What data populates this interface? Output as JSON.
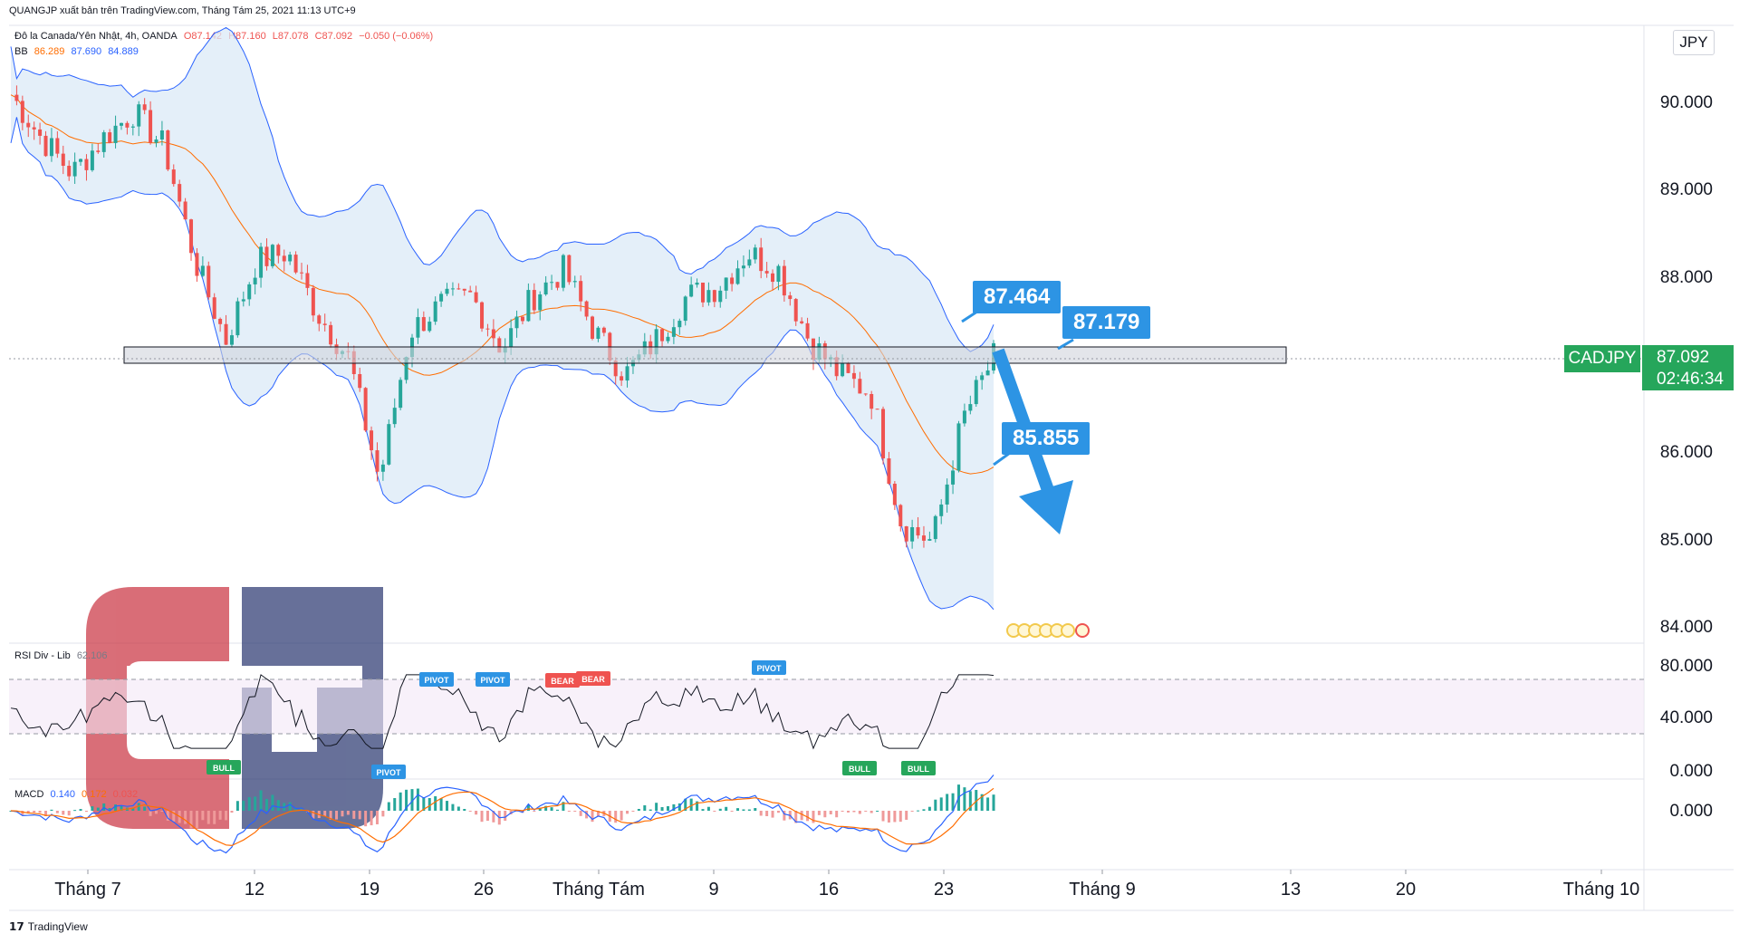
{
  "header": {
    "author_line": "QUANGJP xuất bản trên TradingView.com, Tháng Tám 25, 2021 11:13 UTC+9"
  },
  "legend": {
    "symbol_line": "Đô la Canada/Yên Nhật, 4h, OANDA",
    "open": "O87.142",
    "high": "H87.160",
    "low": "L87.078",
    "close": "C87.092",
    "change": "−0.050 (−0.06%)",
    "bb_label": "BB",
    "bb_basis": "86.289",
    "bb_upper": "87.690",
    "bb_lower": "84.889"
  },
  "currency_button": "JPY",
  "symbol_tag": "CADJPY",
  "last_price": "87.092",
  "countdown": "02:46:34",
  "price_axis": [
    "90.000",
    "89.000",
    "88.000",
    "86.000",
    "85.000",
    "84.000"
  ],
  "rsi_panel": {
    "label": "RSI Div - Lib",
    "value": "62.106",
    "axis": [
      "80.000",
      "40.000",
      "0.000"
    ],
    "signals": [
      {
        "text": "PIVOT",
        "color": "#2d94e4"
      },
      {
        "text": "PIVOT",
        "color": "#2d94e4"
      },
      {
        "text": "BEAR",
        "color": "#ef5350"
      },
      {
        "text": "BEAR",
        "color": "#ef5350"
      },
      {
        "text": "PIVOT",
        "color": "#2d94e4"
      },
      {
        "text": "BULL",
        "color": "#26a65b"
      },
      {
        "text": "PIVOT",
        "color": "#2d94e4"
      },
      {
        "text": "BULL",
        "color": "#26a65b"
      },
      {
        "text": "BULL",
        "color": "#26a65b"
      }
    ]
  },
  "macd_panel": {
    "label": "MACD",
    "v1": "0.140",
    "v2": "0.172",
    "v3": "0.032",
    "axis": [
      "0.000"
    ]
  },
  "time_axis": [
    "Tháng 7",
    "12",
    "19",
    "26",
    "Tháng Tám",
    "9",
    "16",
    "23",
    "Tháng 9",
    "13",
    "20",
    "Tháng 10"
  ],
  "annotations": [
    "87.464",
    "87.179",
    "85.855"
  ],
  "footer": {
    "brand": "TradingView"
  },
  "colors": {
    "up": "#26a69a",
    "down": "#ef5350",
    "bb_fill": "#dbeaf7",
    "bb_line": "#2962ff",
    "basis": "#ff6d00",
    "callout": "#2d94e4",
    "logo_red": "#c9303e",
    "logo_blue": "#27346e"
  },
  "chart_data": {
    "type": "candlestick",
    "symbol": "CADJPY",
    "timeframe": "4h",
    "x": [
      "Tháng 7",
      "12",
      "19",
      "26",
      "Tháng Tám",
      "9",
      "16",
      "23",
      "Tháng 9",
      "13",
      "20",
      "Tháng 10"
    ],
    "ylim": [
      84.0,
      90.5
    ],
    "close_path": [
      90.1,
      89.6,
      89.2,
      89.6,
      89.9,
      89.5,
      88.2,
      87.3,
      88.2,
      88.3,
      87.6,
      87.1,
      85.7,
      87.4,
      87.7,
      87.8,
      87.2,
      87.8,
      88.1,
      87.4,
      86.9,
      87.3,
      87.8,
      87.9,
      88.3,
      88.1,
      87.3,
      86.9,
      86.7,
      85.2,
      85.0,
      86.4,
      87.1
    ],
    "support_zone": [
      87.0,
      87.2
    ],
    "targets": [
      "87.464",
      "87.179",
      "85.855"
    ],
    "rsi_overbought": 70,
    "rsi_oversold": 30
  }
}
